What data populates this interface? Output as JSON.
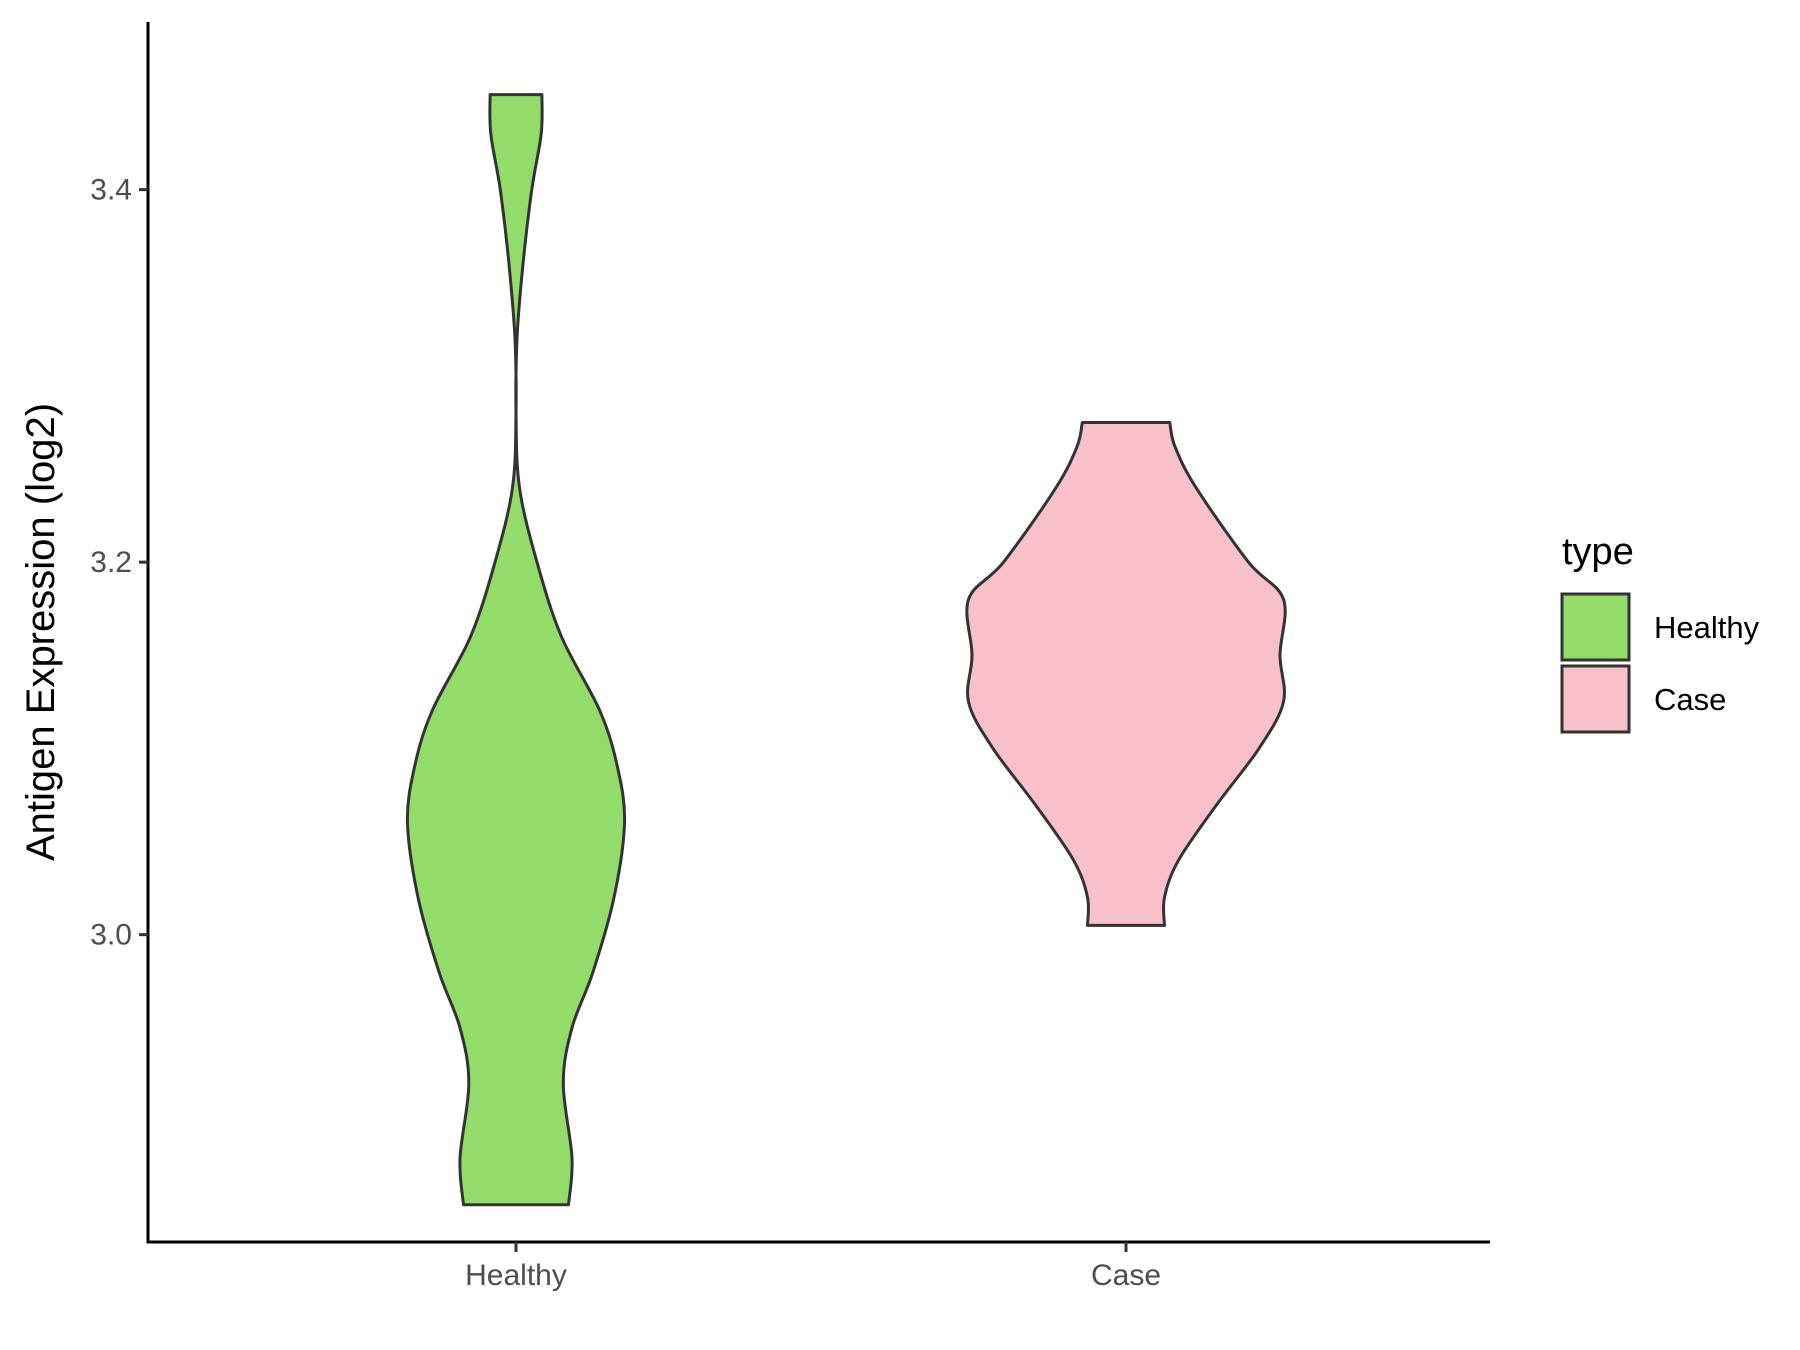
{
  "chart_data": {
    "type": "violin",
    "title": "",
    "xlabel": "",
    "ylabel": "Antigen Expression (log2)",
    "ylim": [
      2.835,
      3.49
    ],
    "yticks": [
      {
        "value": 3.0,
        "label": "3.0"
      },
      {
        "value": 3.2,
        "label": "3.2"
      },
      {
        "value": 3.4,
        "label": "3.4"
      }
    ],
    "categories": [
      "Healthy",
      "Case"
    ],
    "legend": {
      "title": "type",
      "placement": "right",
      "entries": [
        {
          "label": "Healthy",
          "color": "#93DC6A"
        },
        {
          "label": "Case",
          "color": "#F8C0CB"
        }
      ]
    },
    "series": [
      {
        "name": "Healthy",
        "color": "#93DC6A",
        "min": 2.855,
        "max": 3.451,
        "density": [
          [
            2.855,
            0.15
          ],
          [
            2.88,
            0.16
          ],
          [
            2.92,
            0.135
          ],
          [
            2.95,
            0.16
          ],
          [
            2.98,
            0.22
          ],
          [
            3.02,
            0.28
          ],
          [
            3.06,
            0.31
          ],
          [
            3.09,
            0.29
          ],
          [
            3.12,
            0.24
          ],
          [
            3.16,
            0.13
          ],
          [
            3.2,
            0.06
          ],
          [
            3.24,
            0.01
          ],
          [
            3.28,
            0.0
          ],
          [
            3.32,
            0.003
          ],
          [
            3.36,
            0.02
          ],
          [
            3.4,
            0.045
          ],
          [
            3.43,
            0.072
          ],
          [
            3.451,
            0.074
          ]
        ]
      },
      {
        "name": "Case",
        "color": "#F8C0CB",
        "min": 3.005,
        "max": 3.275,
        "density": [
          [
            3.005,
            0.11
          ],
          [
            3.02,
            0.11
          ],
          [
            3.04,
            0.15
          ],
          [
            3.07,
            0.26
          ],
          [
            3.1,
            0.38
          ],
          [
            3.125,
            0.45
          ],
          [
            3.15,
            0.44
          ],
          [
            3.18,
            0.45
          ],
          [
            3.2,
            0.35
          ],
          [
            3.24,
            0.2
          ],
          [
            3.262,
            0.14
          ],
          [
            3.275,
            0.125
          ]
        ]
      }
    ]
  }
}
